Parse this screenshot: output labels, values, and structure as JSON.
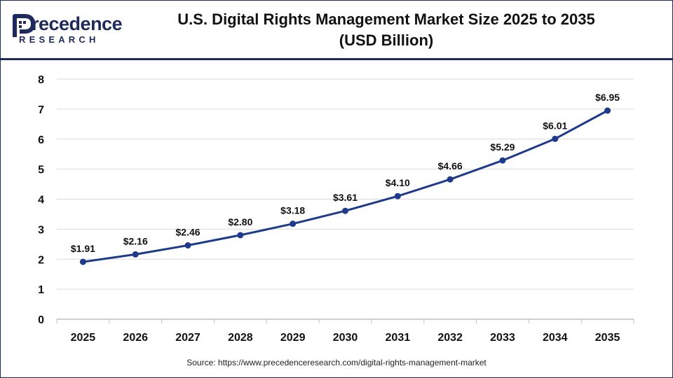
{
  "brand": {
    "logo_word": "recedence",
    "logo_sub": "RESEARCH"
  },
  "title_line1": "U.S. Digital Rights Management Market Size 2025 to 2035",
  "title_line2": "(USD Billion)",
  "source": "Source: https://www.precedenceresearch.com/digital-rights-management-market",
  "colors": {
    "brand_navy": "#1e2a5a",
    "line": "#1e3a8a",
    "grid": "#d9d9d9"
  },
  "chart_data": {
    "type": "line",
    "title": "U.S. Digital Rights Management Market Size 2025 to 2035 (USD Billion)",
    "xlabel": "",
    "ylabel": "",
    "categories": [
      "2025",
      "2026",
      "2027",
      "2028",
      "2029",
      "2030",
      "2031",
      "2032",
      "2033",
      "2034",
      "2035"
    ],
    "series": [
      {
        "values": [
          1.91,
          2.16,
          2.46,
          2.8,
          3.18,
          3.61,
          4.1,
          4.66,
          5.29,
          6.01,
          6.95
        ],
        "labels": [
          "$1.91",
          "$2.16",
          "$2.46",
          "$2.80",
          "$3.18",
          "$3.61",
          "$4.10",
          "$4.66",
          "$5.29",
          "$6.01",
          "$6.95"
        ]
      }
    ],
    "ylim": [
      0,
      8
    ],
    "yticks": [
      "0",
      "1",
      "2",
      "3",
      "4",
      "5",
      "6",
      "7",
      "8"
    ],
    "grid": "horizontal",
    "legend": "none"
  }
}
